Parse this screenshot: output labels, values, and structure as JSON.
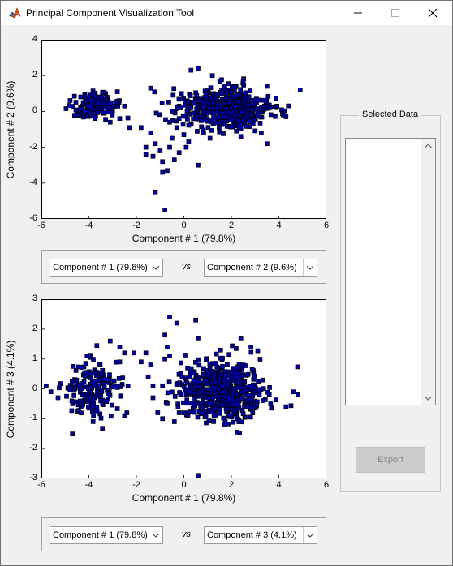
{
  "window": {
    "title": "Principal Component Visualization Tool",
    "controls": [
      "minimize",
      "maximize",
      "close"
    ]
  },
  "top_selector": {
    "x_value": "Component # 1 (79.8%)",
    "vs_label": "vs",
    "y_value": "Component # 2 (9.6%)"
  },
  "bottom_selector": {
    "x_value": "Component # 1 (79.8%)",
    "vs_label": "vs",
    "y_value": "Component # 3 (4.1%)"
  },
  "selected_data": {
    "label": "Selected Data",
    "items": []
  },
  "export_button": {
    "label": "Export",
    "enabled": false
  },
  "colors": {
    "marker_fill": "#0000aa",
    "marker_edge": "#000000"
  },
  "chart_data": [
    {
      "type": "scatter",
      "xlabel": "Component # 1 (79.8%)",
      "ylabel": "Component # 2 (9.6%)",
      "xlim": [
        -6,
        6
      ],
      "ylim": [
        -6,
        4
      ],
      "xticks": [
        "-6",
        "-4",
        "-2",
        "0",
        "2",
        "4",
        "6"
      ],
      "yticks": [
        "4",
        "2",
        "0",
        "-2",
        "-4",
        "-6"
      ],
      "xtick_values": [
        -6,
        -4,
        -2,
        0,
        2,
        4,
        6
      ],
      "ytick_values": [
        4,
        2,
        0,
        -2,
        -4,
        -6
      ],
      "clusters": [
        {
          "center": [
            -3.8,
            0.3
          ],
          "spread": [
            0.5,
            0.35
          ],
          "count": 170
        },
        {
          "center": [
            1.7,
            0.15
          ],
          "spread": [
            0.95,
            0.55
          ],
          "count": 520
        }
      ],
      "points": [
        [
          -1.4,
          1.3
        ],
        [
          -0.1,
          1.0
        ],
        [
          0.6,
          2.4
        ],
        [
          0.3,
          2.3
        ],
        [
          1.2,
          2.0
        ],
        [
          2.5,
          1.7
        ],
        [
          3.5,
          1.4
        ],
        [
          4.9,
          1.2
        ],
        [
          -1.4,
          -1.2
        ],
        [
          -1.2,
          -1.8
        ],
        [
          -1.0,
          -2.2
        ],
        [
          -0.9,
          -2.8
        ],
        [
          -1.3,
          -2.5
        ],
        [
          -0.7,
          -3.3
        ],
        [
          -0.9,
          -3.4
        ],
        [
          -1.2,
          -4.5
        ],
        [
          -0.8,
          -5.5
        ],
        [
          0.6,
          -3.0
        ],
        [
          0.1,
          -2.0
        ],
        [
          -0.5,
          -1.5
        ],
        [
          -0.3,
          -0.9
        ],
        [
          0.0,
          -1.3
        ],
        [
          -0.6,
          -0.6
        ],
        [
          -0.2,
          -2.3
        ],
        [
          1.1,
          -1.5
        ],
        [
          2.4,
          -1.4
        ],
        [
          3.5,
          -1.8
        ],
        [
          4.3,
          -0.3
        ],
        [
          0.2,
          -1.7
        ],
        [
          -1.6,
          -2.0
        ],
        [
          -0.4,
          -2.7
        ],
        [
          -2.3,
          -0.9
        ],
        [
          -2.5,
          0.3
        ],
        [
          -2.8,
          1.1
        ],
        [
          -3.1,
          -0.6
        ],
        [
          -2.7,
          -0.4
        ],
        [
          -1.8,
          -0.9
        ],
        [
          -1.6,
          -2.4
        ],
        [
          -0.2,
          -0.4
        ],
        [
          -0.6,
          -2.0
        ]
      ]
    },
    {
      "type": "scatter",
      "xlabel": "Component # 1 (79.8%)",
      "ylabel": "Component # 3 (4.1%)",
      "xlim": [
        -6,
        6
      ],
      "ylim": [
        -3,
        3
      ],
      "xticks": [
        "-6",
        "-4",
        "-2",
        "0",
        "2",
        "4",
        "6"
      ],
      "yticks": [
        "3",
        "2",
        "1",
        "0",
        "-1",
        "-2",
        "-3"
      ],
      "xtick_values": [
        -6,
        -4,
        -2,
        0,
        2,
        4,
        6
      ],
      "ytick_values": [
        3,
        2,
        1,
        0,
        -1,
        -2,
        -3
      ],
      "clusters": [
        {
          "center": [
            -3.9,
            -0.05
          ],
          "spread": [
            0.55,
            0.45
          ],
          "count": 170
        },
        {
          "center": [
            1.6,
            -0.05
          ],
          "spread": [
            0.95,
            0.5
          ],
          "count": 520
        }
      ],
      "points": [
        [
          -0.6,
          2.4
        ],
        [
          -0.3,
          2.2
        ],
        [
          -0.8,
          1.8
        ],
        [
          0.5,
          2.3
        ],
        [
          0.6,
          1.7
        ],
        [
          2.4,
          1.7
        ],
        [
          -3.1,
          1.6
        ],
        [
          -2.7,
          1.4
        ],
        [
          -2.5,
          1.2
        ],
        [
          -2.1,
          1.2
        ],
        [
          -1.6,
          1.2
        ],
        [
          -0.7,
          1.4
        ],
        [
          -0.6,
          1.1
        ],
        [
          -0.8,
          1.0
        ],
        [
          -1.8,
          0.9
        ],
        [
          -2.7,
          0.9
        ],
        [
          -1.4,
          0.8
        ],
        [
          -1.5,
          0.4
        ],
        [
          -1.3,
          0.1
        ],
        [
          -0.9,
          0.1
        ],
        [
          -1.3,
          -0.3
        ],
        [
          -0.7,
          -0.5
        ],
        [
          -0.2,
          -0.8
        ],
        [
          -0.4,
          -1.1
        ],
        [
          -1.1,
          -0.8
        ],
        [
          -0.9,
          -1.0
        ],
        [
          0.6,
          -2.9
        ],
        [
          -5.8,
          0.1
        ],
        [
          -5.6,
          -0.1
        ],
        [
          -5.3,
          -0.3
        ],
        [
          4.6,
          -0.1
        ],
        [
          4.8,
          -0.2
        ],
        [
          4.3,
          -0.6
        ],
        [
          -2.5,
          -0.9
        ],
        [
          -2.4,
          -0.8
        ]
      ]
    }
  ]
}
